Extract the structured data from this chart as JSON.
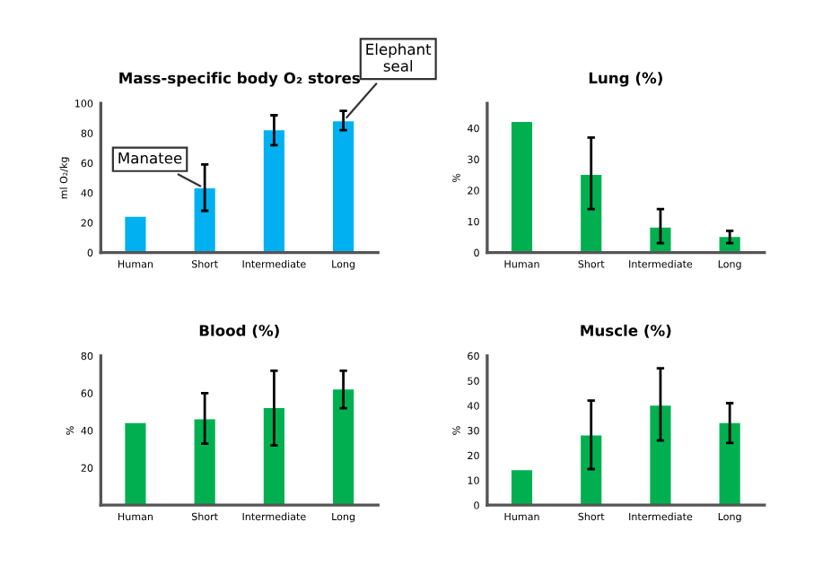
{
  "chart_data": [
    {
      "type": "bar",
      "title": "Mass-specific body O₂ stores",
      "ylabel": "ml O₂/kg",
      "categories": [
        "Human",
        "Short",
        "Intermediate",
        "Long"
      ],
      "values": [
        24,
        43,
        82,
        88
      ],
      "errors": [
        null,
        [
          28,
          59
        ],
        [
          72,
          92
        ],
        [
          82,
          95
        ]
      ],
      "color": "#00b0f0",
      "ylim": [
        0,
        100
      ],
      "yticks": [
        0,
        20,
        40,
        60,
        80,
        100
      ],
      "grid": false,
      "annotations": [
        {
          "text": "Manatee",
          "x": "Short",
          "y": 43
        },
        {
          "text": "Elephant\nseal",
          "x": "Long",
          "y": 88
        }
      ]
    },
    {
      "type": "bar",
      "title": "Lung (%)",
      "ylabel": "%",
      "categories": [
        "Human",
        "Short",
        "Intermediate",
        "Long"
      ],
      "values": [
        42,
        25,
        8,
        5
      ],
      "errors": [
        null,
        [
          14,
          37
        ],
        [
          3,
          14
        ],
        [
          3,
          7
        ]
      ],
      "color": "#00b050",
      "ylim": [
        0,
        48
      ],
      "yticks": [
        0,
        10,
        20,
        30,
        40
      ],
      "grid": false
    },
    {
      "type": "bar",
      "title": "Blood (%)",
      "ylabel": "%",
      "categories": [
        "Human",
        "Short",
        "Intermediate",
        "Long"
      ],
      "values": [
        44,
        46,
        52,
        62
      ],
      "errors": [
        null,
        [
          33,
          60
        ],
        [
          32,
          72
        ],
        [
          52,
          72
        ]
      ],
      "color": "#00b050",
      "ylim": [
        0,
        80
      ],
      "yticks": [
        20,
        40,
        60,
        80
      ],
      "grid": false
    },
    {
      "type": "bar",
      "title": "Muscle (%)",
      "ylabel": "%",
      "categories": [
        "Human",
        "Short",
        "Intermediate",
        "Long"
      ],
      "values": [
        14,
        28,
        40,
        33
      ],
      "errors": [
        null,
        [
          14.5,
          42
        ],
        [
          26,
          55
        ],
        [
          25,
          41
        ]
      ],
      "color": "#00b050",
      "ylim": [
        0,
        60
      ],
      "yticks": [
        0,
        10,
        20,
        30,
        40,
        50,
        60
      ],
      "grid": false
    }
  ]
}
